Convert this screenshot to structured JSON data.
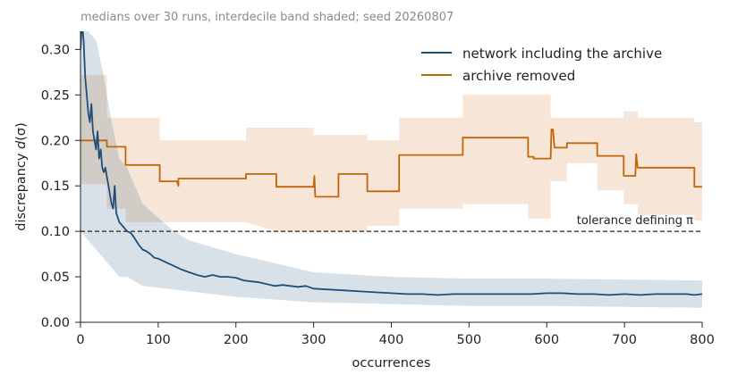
{
  "chart_data": {
    "type": "line",
    "subtitle": "medians over 30 runs, interdecile band shaded; seed 20260807",
    "xlabel": "occurrences",
    "ylabel_main": "discrepancy ",
    "ylabel_sym": "d",
    "ylabel_arg": "(σ)",
    "xlim": [
      0,
      800
    ],
    "ylim": [
      0,
      0.32
    ],
    "xticks": [
      0,
      100,
      200,
      300,
      400,
      500,
      600,
      700,
      800
    ],
    "yticks": [
      0.0,
      0.05,
      0.1,
      0.15,
      0.2,
      0.25,
      0.3
    ],
    "ytick_labels": [
      "0.00",
      "0.05",
      "0.10",
      "0.15",
      "0.20",
      "0.25",
      "0.30"
    ],
    "grid": false,
    "legend_position": "top-right",
    "reference_line": {
      "y": 0.1,
      "label": "tolerance defining π",
      "style": "dashed"
    },
    "series": [
      {
        "name": "network including the archive",
        "color": "#1f4e79",
        "band_color": "#1f4e79",
        "points": [
          [
            0,
            0.3
          ],
          [
            2,
            0.33
          ],
          [
            4,
            0.31
          ],
          [
            6,
            0.27
          ],
          [
            8,
            0.25
          ],
          [
            10,
            0.23
          ],
          [
            12,
            0.22
          ],
          [
            14,
            0.24
          ],
          [
            16,
            0.21
          ],
          [
            18,
            0.2
          ],
          [
            20,
            0.19
          ],
          [
            22,
            0.21
          ],
          [
            24,
            0.18
          ],
          [
            26,
            0.19
          ],
          [
            28,
            0.17
          ],
          [
            30,
            0.165
          ],
          [
            32,
            0.17
          ],
          [
            34,
            0.16
          ],
          [
            36,
            0.15
          ],
          [
            38,
            0.14
          ],
          [
            40,
            0.13
          ],
          [
            42,
            0.125
          ],
          [
            44,
            0.15
          ],
          [
            46,
            0.12
          ],
          [
            48,
            0.115
          ],
          [
            50,
            0.11
          ],
          [
            55,
            0.105
          ],
          [
            60,
            0.1
          ],
          [
            65,
            0.098
          ],
          [
            70,
            0.092
          ],
          [
            75,
            0.085
          ],
          [
            80,
            0.08
          ],
          [
            85,
            0.078
          ],
          [
            90,
            0.075
          ],
          [
            95,
            0.071
          ],
          [
            100,
            0.07
          ],
          [
            110,
            0.066
          ],
          [
            120,
            0.062
          ],
          [
            130,
            0.058
          ],
          [
            140,
            0.055
          ],
          [
            150,
            0.052
          ],
          [
            160,
            0.05
          ],
          [
            170,
            0.052
          ],
          [
            180,
            0.05
          ],
          [
            190,
            0.05
          ],
          [
            200,
            0.049
          ],
          [
            210,
            0.046
          ],
          [
            220,
            0.045
          ],
          [
            230,
            0.044
          ],
          [
            240,
            0.042
          ],
          [
            250,
            0.04
          ],
          [
            260,
            0.041
          ],
          [
            270,
            0.04
          ],
          [
            280,
            0.039
          ],
          [
            290,
            0.04
          ],
          [
            300,
            0.037
          ],
          [
            320,
            0.036
          ],
          [
            340,
            0.035
          ],
          [
            360,
            0.034
          ],
          [
            380,
            0.033
          ],
          [
            400,
            0.032
          ],
          [
            420,
            0.031
          ],
          [
            440,
            0.031
          ],
          [
            460,
            0.03
          ],
          [
            480,
            0.031
          ],
          [
            500,
            0.031
          ],
          [
            520,
            0.031
          ],
          [
            540,
            0.031
          ],
          [
            560,
            0.031
          ],
          [
            580,
            0.031
          ],
          [
            600,
            0.032
          ],
          [
            620,
            0.032
          ],
          [
            640,
            0.031
          ],
          [
            660,
            0.031
          ],
          [
            680,
            0.03
          ],
          [
            700,
            0.031
          ],
          [
            720,
            0.03
          ],
          [
            740,
            0.031
          ],
          [
            760,
            0.031
          ],
          [
            780,
            0.031
          ],
          [
            790,
            0.03
          ],
          [
            800,
            0.031
          ]
        ],
        "band": [
          [
            0,
            0.1,
            0.32
          ],
          [
            10,
            0.09,
            0.32
          ],
          [
            20,
            0.08,
            0.31
          ],
          [
            30,
            0.07,
            0.27
          ],
          [
            40,
            0.06,
            0.22
          ],
          [
            50,
            0.05,
            0.18
          ],
          [
            60,
            0.05,
            0.17
          ],
          [
            70,
            0.045,
            0.15
          ],
          [
            80,
            0.04,
            0.13
          ],
          [
            100,
            0.038,
            0.115
          ],
          [
            120,
            0.036,
            0.1
          ],
          [
            140,
            0.034,
            0.09
          ],
          [
            160,
            0.032,
            0.085
          ],
          [
            200,
            0.028,
            0.075
          ],
          [
            250,
            0.025,
            0.065
          ],
          [
            300,
            0.022,
            0.055
          ],
          [
            400,
            0.02,
            0.05
          ],
          [
            500,
            0.018,
            0.048
          ],
          [
            600,
            0.018,
            0.048
          ],
          [
            700,
            0.017,
            0.047
          ],
          [
            800,
            0.016,
            0.046
          ]
        ]
      },
      {
        "name": "archive removed",
        "color": "#c0650a",
        "band_color": "#e8b88c",
        "points": [
          [
            0,
            0.2
          ],
          [
            34,
            0.2
          ],
          [
            34,
            0.193
          ],
          [
            58,
            0.193
          ],
          [
            58,
            0.173
          ],
          [
            102,
            0.173
          ],
          [
            102,
            0.155
          ],
          [
            124,
            0.155
          ],
          [
            126,
            0.15
          ],
          [
            126,
            0.158
          ],
          [
            213,
            0.158
          ],
          [
            213,
            0.163
          ],
          [
            252,
            0.163
          ],
          [
            252,
            0.149
          ],
          [
            300,
            0.149
          ],
          [
            301,
            0.161
          ],
          [
            302,
            0.138
          ],
          [
            332,
            0.138
          ],
          [
            332,
            0.163
          ],
          [
            369,
            0.163
          ],
          [
            369,
            0.144
          ],
          [
            410,
            0.144
          ],
          [
            410,
            0.184
          ],
          [
            492,
            0.184
          ],
          [
            492,
            0.203
          ],
          [
            576,
            0.203
          ],
          [
            576,
            0.182
          ],
          [
            583,
            0.182
          ],
          [
            583,
            0.18
          ],
          [
            605,
            0.18
          ],
          [
            606,
            0.212
          ],
          [
            608,
            0.212
          ],
          [
            610,
            0.192
          ],
          [
            626,
            0.192
          ],
          [
            626,
            0.197
          ],
          [
            665,
            0.197
          ],
          [
            665,
            0.183
          ],
          [
            699,
            0.183
          ],
          [
            699,
            0.161
          ],
          [
            714,
            0.161
          ],
          [
            715,
            0.185
          ],
          [
            717,
            0.17
          ],
          [
            790,
            0.17
          ],
          [
            790,
            0.149
          ],
          [
            800,
            0.149
          ]
        ],
        "band": [
          [
            0,
            0.152,
            0.272
          ],
          [
            34,
            0.152,
            0.272
          ],
          [
            34,
            0.125,
            0.225
          ],
          [
            58,
            0.125,
            0.225
          ],
          [
            58,
            0.11,
            0.225
          ],
          [
            102,
            0.11,
            0.225
          ],
          [
            102,
            0.11,
            0.2
          ],
          [
            213,
            0.11,
            0.2
          ],
          [
            213,
            0.11,
            0.214
          ],
          [
            252,
            0.1,
            0.214
          ],
          [
            300,
            0.1,
            0.214
          ],
          [
            300,
            0.1,
            0.206
          ],
          [
            369,
            0.1,
            0.206
          ],
          [
            369,
            0.106,
            0.2
          ],
          [
            410,
            0.106,
            0.2
          ],
          [
            410,
            0.125,
            0.225
          ],
          [
            492,
            0.125,
            0.225
          ],
          [
            492,
            0.13,
            0.25
          ],
          [
            576,
            0.13,
            0.25
          ],
          [
            576,
            0.114,
            0.25
          ],
          [
            605,
            0.114,
            0.25
          ],
          [
            605,
            0.155,
            0.225
          ],
          [
            626,
            0.155,
            0.225
          ],
          [
            626,
            0.175,
            0.225
          ],
          [
            665,
            0.175,
            0.225
          ],
          [
            665,
            0.145,
            0.225
          ],
          [
            699,
            0.145,
            0.225
          ],
          [
            699,
            0.13,
            0.232
          ],
          [
            717,
            0.13,
            0.232
          ],
          [
            717,
            0.118,
            0.225
          ],
          [
            790,
            0.118,
            0.225
          ],
          [
            790,
            0.112,
            0.22
          ],
          [
            800,
            0.112,
            0.22
          ]
        ]
      }
    ]
  }
}
